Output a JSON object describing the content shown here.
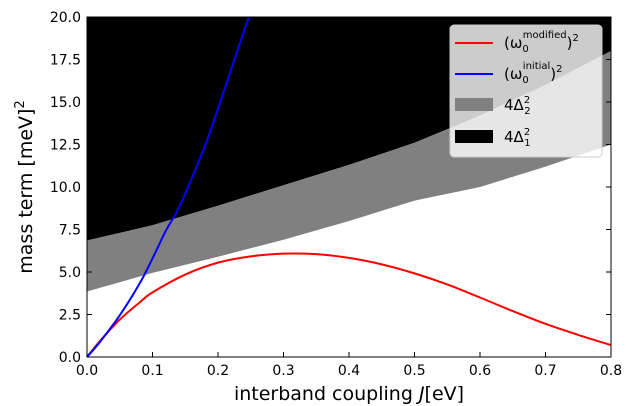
{
  "chart_data": {
    "type": "area",
    "xlabel": {
      "main": "interband coupling ",
      "italic": "J",
      "unit": "[eV]"
    },
    "ylabel": {
      "main": "mass term [meV]",
      "sup": "2"
    },
    "xlim": [
      0.0,
      0.8
    ],
    "ylim": [
      0.0,
      20.0
    ],
    "x_ticks": [
      "0.0",
      "0.1",
      "0.2",
      "0.3",
      "0.4",
      "0.5",
      "0.6",
      "0.7",
      "0.8"
    ],
    "y_ticks": [
      "0.0",
      "2.5",
      "5.0",
      "7.5",
      "10.0",
      "12.5",
      "15.0",
      "17.5",
      "20.0"
    ],
    "grid": false,
    "legend_position": "top-right",
    "series": [
      {
        "name": {
          "base": "(ω",
          "sub": "0",
          "sup": "modified",
          "tail": ")",
          "tail_sup": "2"
        },
        "kind": "line",
        "color": "#ff0000",
        "x": [
          0.0,
          0.02,
          0.05,
          0.08,
          0.1,
          0.15,
          0.2,
          0.25,
          0.3,
          0.35,
          0.4,
          0.45,
          0.5,
          0.55,
          0.6,
          0.65,
          0.7,
          0.75,
          0.8
        ],
        "y": [
          0.0,
          0.95,
          2.2,
          3.2,
          3.8,
          4.85,
          5.55,
          5.92,
          6.08,
          6.05,
          5.83,
          5.45,
          4.92,
          4.27,
          3.5,
          2.7,
          1.95,
          1.3,
          0.7
        ]
      },
      {
        "name": {
          "base": "(ω",
          "sub": "0",
          "sup": "initial",
          "tail": ")",
          "tail_sup": "2"
        },
        "kind": "line",
        "color": "#0000ff",
        "x": [
          0.0,
          0.02,
          0.05,
          0.08,
          0.1,
          0.12,
          0.135,
          0.15,
          0.18,
          0.2,
          0.22,
          0.24,
          0.25
        ],
        "y": [
          0.0,
          0.9,
          2.45,
          4.3,
          5.8,
          7.4,
          8.4,
          9.6,
          12.4,
          14.6,
          16.9,
          19.2,
          20.3
        ]
      },
      {
        "name": {
          "base": "4Δ",
          "sub": "2",
          "sup": "2"
        },
        "kind": "band",
        "color": "#808080",
        "x": [
          0.0,
          0.1,
          0.2,
          0.3,
          0.4,
          0.5,
          0.6,
          0.7,
          0.8
        ],
        "y": [
          3.85,
          4.95,
          5.9,
          6.9,
          8.0,
          9.2,
          10.0,
          11.2,
          12.5
        ]
      },
      {
        "name": {
          "base": "4Δ",
          "sub": "1",
          "sup": "2"
        },
        "kind": "band",
        "color": "#000000",
        "x": [
          0.0,
          0.1,
          0.2,
          0.3,
          0.4,
          0.5,
          0.6,
          0.7,
          0.8
        ],
        "y": [
          6.85,
          7.75,
          8.9,
          10.1,
          11.3,
          12.6,
          14.2,
          16.0,
          18.0
        ]
      }
    ]
  }
}
